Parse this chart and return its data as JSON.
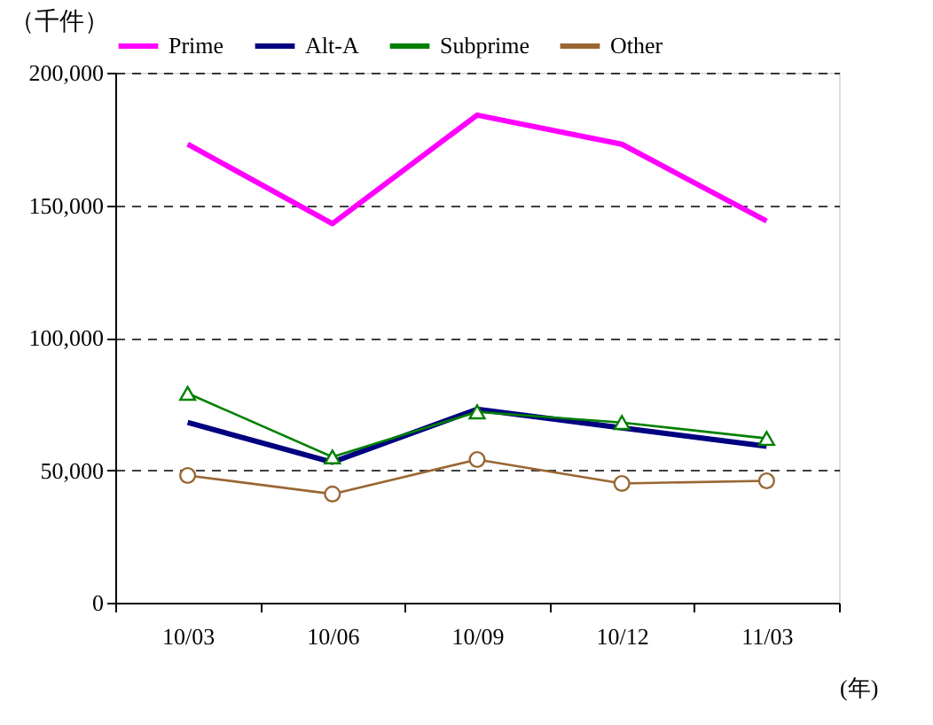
{
  "chart_data": {
    "type": "line",
    "ylabel": "（千件）",
    "xlabel": "(年)",
    "categories": [
      "10/03",
      "10/06",
      "10/09",
      "10/12",
      "11/03"
    ],
    "series": [
      {
        "name": "Prime",
        "color": "#ff00ff",
        "marker": "none",
        "values": [
          173000,
          143000,
          184000,
          173000,
          144000
        ]
      },
      {
        "name": "Alt-A",
        "color": "#000080",
        "marker": "none",
        "values": [
          68000,
          53000,
          73000,
          66000,
          59000
        ]
      },
      {
        "name": "Subprime",
        "color": "#008000",
        "marker": "triangle",
        "values": [
          79000,
          55000,
          72000,
          68000,
          62000
        ]
      },
      {
        "name": "Other",
        "color": "#996633",
        "marker": "circle",
        "values": [
          48000,
          41000,
          54000,
          45000,
          46000
        ]
      }
    ],
    "ylim": [
      0,
      200000
    ],
    "yticks": [
      0,
      {
        "value": 50000,
        "label": "50,000"
      },
      {
        "value": 100000,
        "label": "100,000"
      },
      {
        "value": 150000,
        "label": "150,000"
      },
      {
        "value": 200000,
        "label": "200,000"
      }
    ],
    "grid": "y",
    "legend": "top"
  }
}
